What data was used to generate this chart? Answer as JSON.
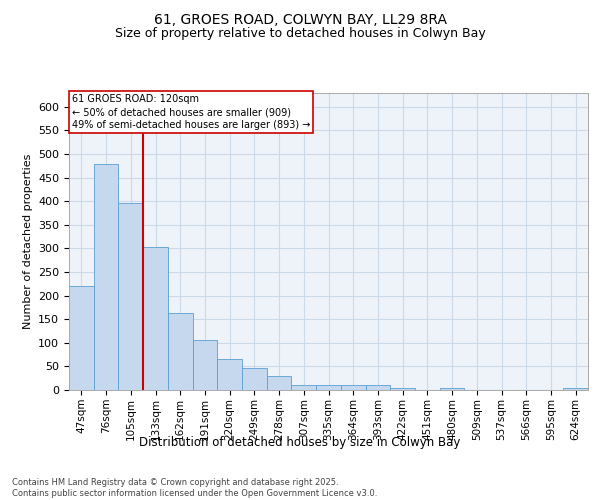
{
  "title1": "61, GROES ROAD, COLWYN BAY, LL29 8RA",
  "title2": "Size of property relative to detached houses in Colwyn Bay",
  "xlabel": "Distribution of detached houses by size in Colwyn Bay",
  "ylabel": "Number of detached properties",
  "categories": [
    "47sqm",
    "76sqm",
    "105sqm",
    "133sqm",
    "162sqm",
    "191sqm",
    "220sqm",
    "249sqm",
    "278sqm",
    "307sqm",
    "335sqm",
    "364sqm",
    "393sqm",
    "422sqm",
    "451sqm",
    "480sqm",
    "509sqm",
    "537sqm",
    "566sqm",
    "595sqm",
    "624sqm"
  ],
  "values": [
    220,
    478,
    395,
    302,
    163,
    105,
    65,
    47,
    30,
    10,
    10,
    10,
    10,
    5,
    0,
    5,
    0,
    0,
    0,
    0,
    5
  ],
  "bar_color": "#c5d8ed",
  "bar_edge_color": "#5a9fd4",
  "grid_color": "#ccd9e8",
  "background_color": "#eef3f9",
  "vline_x": 2.5,
  "vline_color": "#cc0000",
  "annotation_text": "61 GROES ROAD: 120sqm\n← 50% of detached houses are smaller (909)\n49% of semi-detached houses are larger (893) →",
  "annotation_box_color": "#cc0000",
  "ylim": [
    0,
    630
  ],
  "yticks": [
    0,
    50,
    100,
    150,
    200,
    250,
    300,
    350,
    400,
    450,
    500,
    550,
    600
  ],
  "footer": "Contains HM Land Registry data © Crown copyright and database right 2025.\nContains public sector information licensed under the Open Government Licence v3.0.",
  "title_fontsize": 10,
  "subtitle_fontsize": 9,
  "footer_fontsize": 6
}
